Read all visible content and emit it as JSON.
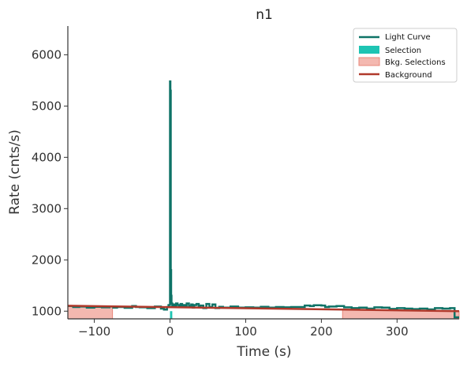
{
  "chart_data": {
    "type": "line",
    "title": "n1",
    "xlabel": "Time (s)",
    "ylabel": "Rate (cnts/s)",
    "xlim": [
      -135,
      382
    ],
    "ylim": [
      850,
      6560
    ],
    "xticks": [
      -100,
      0,
      100,
      200,
      300
    ],
    "xtick_labels": [
      "−100",
      "0",
      "100",
      "200",
      "300"
    ],
    "yticks": [
      1000,
      2000,
      3000,
      4000,
      5000,
      6000
    ],
    "ytick_labels": [
      "1000",
      "2000",
      "3000",
      "4000",
      "5000",
      "6000"
    ],
    "grid": false,
    "legend_position": "top-right",
    "colors": {
      "light_curve": "#0e7367",
      "selection": "#1ec4b3",
      "bkg_selection_fill": "#f4b8b0",
      "bkg_selection_edge": "#e8877a",
      "background": "#b0392b",
      "axis": "#333333"
    },
    "series": [
      {
        "name": "Light Curve",
        "type": "step",
        "x": [
          -135,
          -128,
          -120,
          -110,
          -100,
          -90,
          -80,
          -75,
          -70,
          -60,
          -50,
          -45,
          -40,
          -30,
          -20,
          -12,
          -8,
          -4,
          -2,
          0,
          0.5,
          1,
          1.5,
          2,
          3,
          4,
          6,
          8,
          10,
          12,
          14,
          16,
          18,
          20,
          22,
          25,
          28,
          30,
          32,
          35,
          38,
          40,
          44,
          48,
          52,
          56,
          60,
          65,
          70,
          80,
          90,
          100,
          110,
          120,
          130,
          140,
          150,
          160,
          170,
          178,
          185,
          190,
          200,
          205,
          210,
          220,
          230,
          240,
          250,
          260,
          270,
          280,
          290,
          300,
          310,
          320,
          330,
          340,
          350,
          360,
          370,
          376,
          382
        ],
        "y": [
          1100,
          1080,
          1090,
          1070,
          1085,
          1075,
          1090,
          1070,
          1080,
          1065,
          1100,
          1080,
          1075,
          1060,
          1090,
          1050,
          1030,
          1080,
          1120,
          5480,
          5300,
          1800,
          1300,
          1150,
          1100,
          1130,
          1080,
          1150,
          1120,
          1090,
          1140,
          1080,
          1120,
          1095,
          1150,
          1100,
          1130,
          1070,
          1120,
          1140,
          1090,
          1110,
          1060,
          1140,
          1080,
          1130,
          1060,
          1085,
          1070,
          1090,
          1070,
          1075,
          1070,
          1085,
          1070,
          1080,
          1075,
          1080,
          1080,
          1110,
          1100,
          1115,
          1110,
          1080,
          1090,
          1100,
          1075,
          1060,
          1070,
          1050,
          1075,
          1070,
          1045,
          1060,
          1050,
          1040,
          1050,
          1035,
          1060,
          1050,
          1060,
          880,
          880
        ]
      },
      {
        "name": "Selection",
        "type": "fill",
        "x_range": [
          0,
          3
        ],
        "y_bottom": 850,
        "y_top": 1000
      },
      {
        "name": "Bkg. Selections",
        "type": "fill",
        "ranges": [
          [
            -135,
            -76
          ],
          [
            228,
            382
          ]
        ],
        "y_bottom": 850,
        "y_top_start": 1105,
        "y_top_end": 1000
      },
      {
        "name": "Background",
        "type": "line",
        "x": [
          -135,
          382
        ],
        "y": [
          1105,
          1000
        ]
      }
    ]
  }
}
